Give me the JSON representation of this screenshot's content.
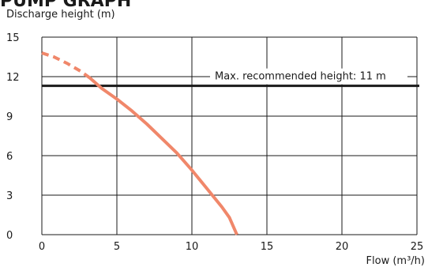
{
  "chart_data": {
    "type": "line",
    "title_fragment": "PUMP GRAPH",
    "ylabel": "Discharge height (m)",
    "xlabel": "Flow (m³/h)",
    "xlim": [
      0,
      25
    ],
    "ylim": [
      0,
      15
    ],
    "x_ticks": [
      0,
      5,
      10,
      15,
      20,
      25
    ],
    "y_ticks": [
      0,
      3,
      6,
      9,
      12,
      15
    ],
    "grid": true,
    "series": [
      {
        "color": "#f0876a",
        "dashed_segment": {
          "x": [
            0,
            0.8,
            1.7,
            2.6,
            3.2
          ],
          "y": [
            13.8,
            13.5,
            13.0,
            12.4,
            11.9
          ]
        },
        "solid_segment": {
          "x": [
            3.2,
            4.0,
            5.0,
            6.0,
            7.0,
            8.0,
            9.0,
            10.0,
            11.0,
            12.0,
            12.5,
            13.0
          ],
          "y": [
            11.9,
            11.1,
            10.3,
            9.4,
            8.4,
            7.3,
            6.2,
            4.9,
            3.5,
            2.1,
            1.3,
            0.0
          ]
        }
      }
    ],
    "reference_line": {
      "y": 11.3,
      "label": "Max. recommended height: 11 m",
      "color": "#1a1a1a"
    }
  }
}
